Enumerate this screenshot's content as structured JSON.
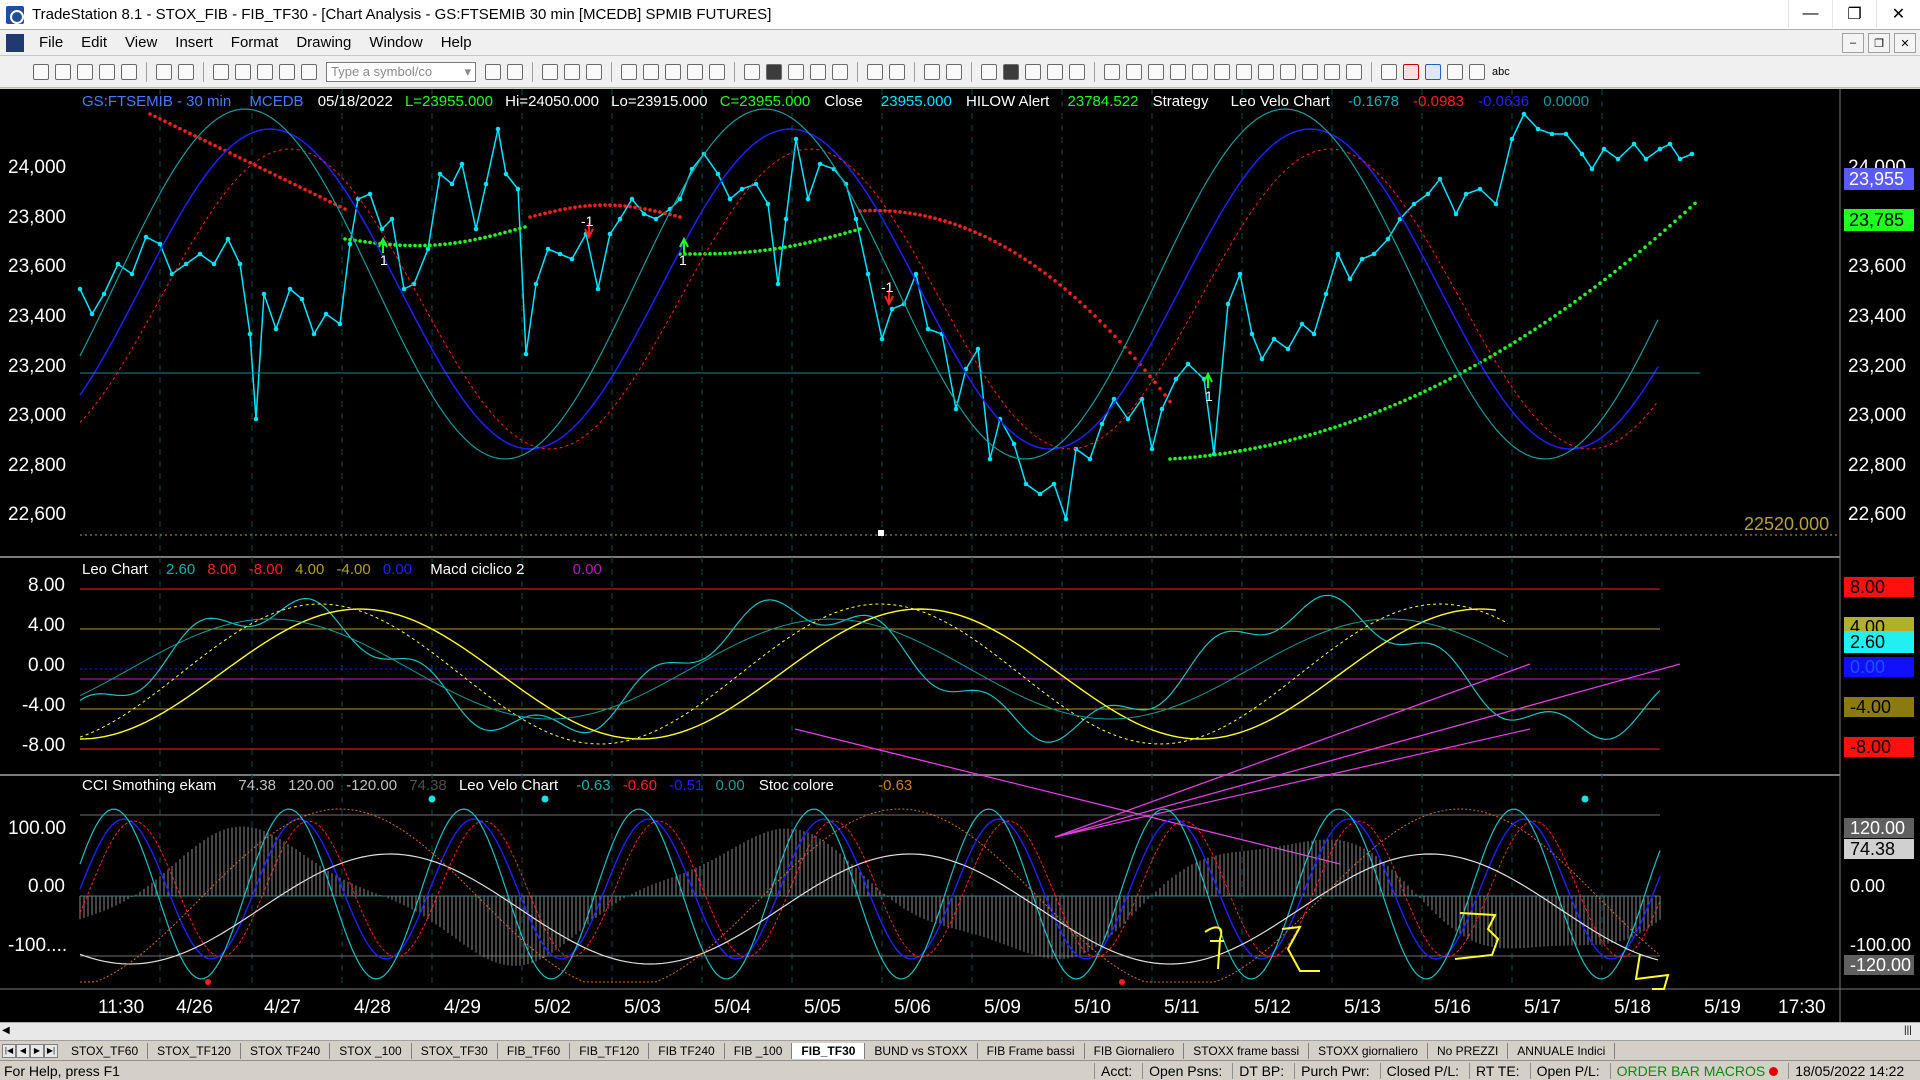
{
  "window": {
    "title": "TradeStation 8.1 - STOX_FIB - FIB_TF30 - [Chart Analysis - GS:FTSEMIB  30 min  [MCEDB] SPMIB FUTURES]",
    "min": "—",
    "max": "❐",
    "close": "✕"
  },
  "menu": {
    "items": [
      "File",
      "Edit",
      "View",
      "Insert",
      "Format",
      "Drawing",
      "Window",
      "Help"
    ]
  },
  "toolbar": {
    "symbol_placeholder": "Type a symbol/co",
    "abc_label": "abc"
  },
  "chart": {
    "colors": {
      "bg": "#000000",
      "price": "#00e5ff",
      "red": "#ff2020",
      "green": "#20ff20",
      "blue": "#2020ff",
      "teal": "#1a9a9a",
      "yellow": "#ffff30",
      "magenta": "#e040e0",
      "grid": "#0d4a4a"
    },
    "header": {
      "symbol": "GS:FTSEMIB - 30 min",
      "feed": "MCEDB",
      "date": "05/18/2022",
      "last": "L=23955.000",
      "hi": "Hi=24050.000",
      "lo": "Lo=23915.000",
      "close_c": "C=23955.000",
      "close_label": "Close",
      "close_value": "23955.000",
      "hilow_label": "HILOW Alert",
      "hilow_value": "23784.522",
      "strategy": "Strategy",
      "leo_velo": "Leo Velo Chart",
      "v1": "-0.1678",
      "v2": "-0.0983",
      "v3": "-0.0636",
      "v4": "0.0000"
    },
    "price_axis": [
      "24,000",
      "23,800",
      "23,600",
      "23,400",
      "23,200",
      "23,000",
      "22,800",
      "22,600"
    ],
    "price_tags": {
      "close": "23,955",
      "hilow": "23,785",
      "low_line": "22520.000"
    },
    "arrow_labels": [
      "1",
      "-1",
      "1",
      "-1",
      "1"
    ],
    "panel2": {
      "title": "Leo Chart",
      "p1": "2.60",
      "p2": "8.00",
      "p3": "-8.00",
      "p4": "4.00",
      "p5": "-4.00",
      "p6": "0.00",
      "macd_label": "Macd ciclico 2",
      "macd_value": "0.00",
      "axis": [
        "8.00",
        "4.00",
        "0.00",
        "-4.00",
        "-8.00"
      ],
      "tags": {
        "t8": "8.00",
        "t4": "4.00",
        "t26": "2.60",
        "t0": "0.00",
        "tm4": "-4.00",
        "tm8": "-8.00"
      }
    },
    "panel3": {
      "title": "CCI Smothing ekam",
      "p1": "74.38",
      "p2": "120.00",
      "p3": "-120.00",
      "p4": "74.38",
      "velo": "Leo Velo Chart",
      "v1": "-0.63",
      "v2": "-0.60",
      "v3": "-0.51",
      "v4": "0.00",
      "stoc": "Stoc colore",
      "stoc_value": "-0.63",
      "axis": [
        "100.00",
        "0.00",
        "-100...."
      ],
      "tags": {
        "t120": "120.00",
        "t74": "74.38",
        "t0": "0.00",
        "tm100": "-100.00",
        "tm120": "-120.00"
      }
    },
    "time_axis": [
      "11:30",
      "4/26",
      "4/27",
      "4/28",
      "4/29",
      "5/02",
      "5/03",
      "5/04",
      "5/05",
      "5/06",
      "5/09",
      "5/10",
      "5/11",
      "5/12",
      "5/13",
      "5/16",
      "5/17",
      "5/18",
      "5/19",
      "17:30"
    ]
  },
  "tabs": [
    "STOX_TF60",
    "STOX_TF120",
    "STOX TF240",
    "STOX _100",
    "STOX_TF30",
    "FIB_TF60",
    "FIB_TF120",
    "FIB TF240",
    "FIB _100",
    "FIB_TF30",
    "BUND vs STOXX",
    "FIB Frame bassi",
    "FIB Giornaliero",
    "STOXX frame bassi",
    "STOXX giornaliero",
    "No PREZZI",
    "ANNUALE Indici"
  ],
  "active_tab": "FIB_TF30",
  "status": {
    "help": "For Help, press F1",
    "acct": "Acct:",
    "open_psns": "Open Psns:",
    "dt_bp": "DT BP:",
    "purch_pwr": "Purch Pwr:",
    "closed_pl": "Closed P/L:",
    "rt_te": "RT TE:",
    "open_pl": "Open P/L:",
    "macros": "ORDER BAR  MACROS",
    "datetime": "18/05/2022 14:22"
  }
}
